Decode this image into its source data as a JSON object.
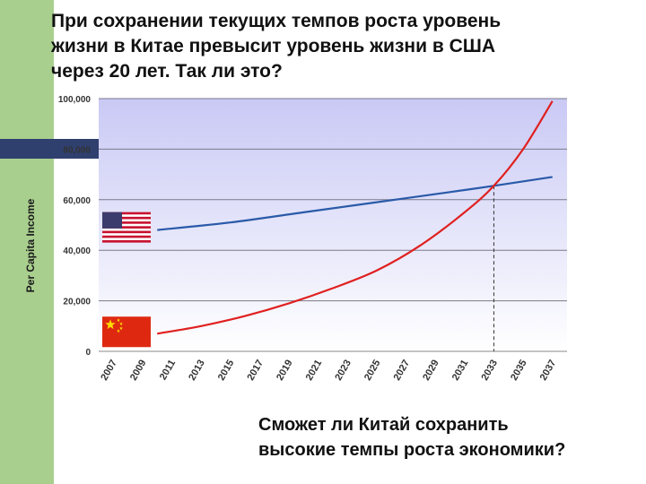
{
  "slide": {
    "title_lines": [
      "При сохранении текущих темпов роста уровень",
      "жизни в Китае превысит уровень жизни в США",
      "через 20 лет. Так ли это?"
    ],
    "question_lines": [
      "Сможет ли Китай сохранить",
      "высокие темпы роста экономики?"
    ],
    "band_color": "#a9cf8e",
    "stripe_color": "#2f3f6e"
  },
  "chart_data": {
    "type": "line",
    "ylabel": "Per Capita Income",
    "ylim": [
      0,
      100000
    ],
    "y_ticks": [
      "0",
      "20,000",
      "40,000",
      "60,000",
      "80,000",
      "100,000"
    ],
    "x_ticks": [
      "2007",
      "2009",
      "2011",
      "2013",
      "2015",
      "2017",
      "2019",
      "2021",
      "2023",
      "2025",
      "2027",
      "2029",
      "2031",
      "2033",
      "2035",
      "2037"
    ],
    "x_range": [
      2006,
      2038
    ],
    "grid": true,
    "series": [
      {
        "id": "usa",
        "color": "#2a5aa8",
        "flag": "usa-flag",
        "x": [
          2010,
          2015,
          2020,
          2025,
          2030,
          2033,
          2037
        ],
        "y": [
          48000,
          51000,
          55000,
          59000,
          63000,
          65500,
          69000
        ]
      },
      {
        "id": "china",
        "color": "#e02020",
        "flag": "china-flag",
        "x": [
          2010,
          2013,
          2016,
          2019,
          2022,
          2025,
          2028,
          2031,
          2033,
          2035,
          2037
        ],
        "y": [
          7000,
          10000,
          14000,
          19000,
          25000,
          32000,
          42000,
          55000,
          65500,
          80000,
          99000
        ]
      }
    ],
    "crossover": {
      "x": 2033,
      "y": 65500
    },
    "colors": {
      "plot_background_top": "#c9c9f5",
      "plot_background_bottom": "#ffffff"
    }
  }
}
